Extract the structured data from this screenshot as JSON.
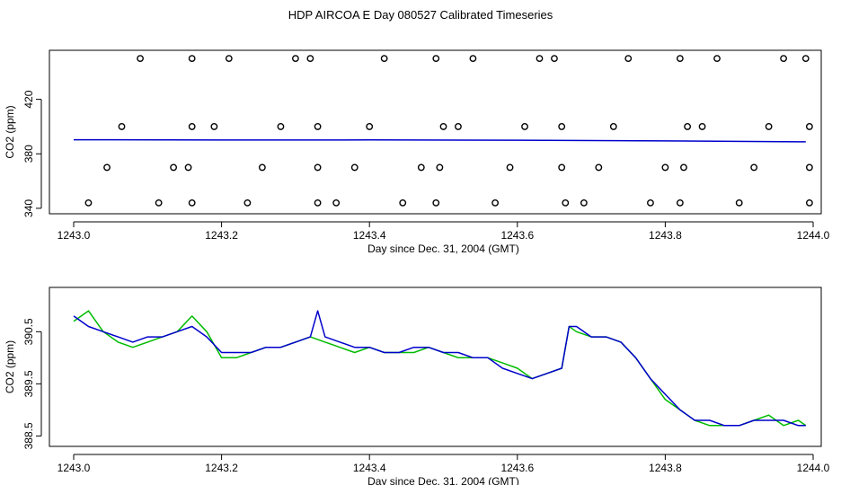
{
  "title": "HDP AIRCOA E  Day 080527  Calibrated Timeseries",
  "chart_data": [
    {
      "type": "scatter",
      "xlabel": "Day since Dec. 31, 2004 (GMT)",
      "ylabel": "CO2 (ppm)",
      "xlim": [
        1243.0,
        1244.0
      ],
      "ylim": [
        336,
        456
      ],
      "x_ticks": [
        "1243.0",
        "1243.2",
        "1243.4",
        "1243.6",
        "1243.8",
        "1244.0"
      ],
      "y_ticks": [
        "340",
        "380",
        "420"
      ],
      "grid": false,
      "series": [
        {
          "marker": "open-circle",
          "color": "#000000",
          "points": [
            [
              1243.09,
              450
            ],
            [
              1243.16,
              450
            ],
            [
              1243.21,
              450
            ],
            [
              1243.3,
              450
            ],
            [
              1243.32,
              450
            ],
            [
              1243.42,
              450
            ],
            [
              1243.49,
              450
            ],
            [
              1243.54,
              450
            ],
            [
              1243.63,
              450
            ],
            [
              1243.65,
              450
            ],
            [
              1243.75,
              450
            ],
            [
              1243.82,
              450
            ],
            [
              1243.87,
              450
            ],
            [
              1243.96,
              450
            ],
            [
              1243.99,
              450
            ],
            [
              1243.065,
              400
            ],
            [
              1243.16,
              400
            ],
            [
              1243.19,
              400
            ],
            [
              1243.28,
              400
            ],
            [
              1243.33,
              400
            ],
            [
              1243.4,
              400
            ],
            [
              1243.5,
              400
            ],
            [
              1243.52,
              400
            ],
            [
              1243.61,
              400
            ],
            [
              1243.66,
              400
            ],
            [
              1243.73,
              400
            ],
            [
              1243.83,
              400
            ],
            [
              1243.85,
              400
            ],
            [
              1243.94,
              400
            ],
            [
              1243.995,
              400
            ],
            [
              1243.045,
              370
            ],
            [
              1243.135,
              370
            ],
            [
              1243.155,
              370
            ],
            [
              1243.255,
              370
            ],
            [
              1243.33,
              370
            ],
            [
              1243.38,
              370
            ],
            [
              1243.47,
              370
            ],
            [
              1243.495,
              370
            ],
            [
              1243.59,
              370
            ],
            [
              1243.66,
              370
            ],
            [
              1243.71,
              370
            ],
            [
              1243.8,
              370
            ],
            [
              1243.825,
              370
            ],
            [
              1243.92,
              370
            ],
            [
              1243.995,
              370
            ],
            [
              1243.02,
              344
            ],
            [
              1243.115,
              344
            ],
            [
              1243.16,
              344
            ],
            [
              1243.235,
              344
            ],
            [
              1243.33,
              344
            ],
            [
              1243.355,
              344
            ],
            [
              1243.445,
              344
            ],
            [
              1243.49,
              344
            ],
            [
              1243.57,
              344
            ],
            [
              1243.665,
              344
            ],
            [
              1243.69,
              344
            ],
            [
              1243.78,
              344
            ],
            [
              1243.82,
              344
            ],
            [
              1243.9,
              344
            ],
            [
              1243.995,
              344
            ]
          ]
        },
        {
          "marker": "line",
          "color": "#0000cc",
          "x": [
            1243.0,
            1243.2,
            1243.4,
            1243.6,
            1243.8,
            1243.99
          ],
          "y": [
            390.3,
            390.1,
            390.2,
            390.0,
            389.5,
            388.8
          ]
        }
      ]
    },
    {
      "type": "line",
      "xlabel": "Day since Dec. 31, 2004 (GMT)",
      "ylabel": "CO2 (ppm)",
      "xlim": [
        1243.0,
        1244.0
      ],
      "ylim": [
        388.3,
        391.35
      ],
      "x_ticks": [
        "1243.0",
        "1243.2",
        "1243.4",
        "1243.6",
        "1243.8",
        "1244.0"
      ],
      "y_ticks": [
        "388.5",
        "389.5",
        "390.5"
      ],
      "grid": false,
      "series": [
        {
          "color": "#00bb00",
          "x": [
            1243.0,
            1243.02,
            1243.04,
            1243.06,
            1243.08,
            1243.1,
            1243.12,
            1243.14,
            1243.16,
            1243.18,
            1243.2,
            1243.22,
            1243.24,
            1243.26,
            1243.28,
            1243.3,
            1243.32,
            1243.34,
            1243.36,
            1243.38,
            1243.4,
            1243.42,
            1243.44,
            1243.46,
            1243.48,
            1243.5,
            1243.52,
            1243.54,
            1243.56,
            1243.58,
            1243.6,
            1243.62,
            1243.64,
            1243.66,
            1243.67,
            1243.68,
            1243.7,
            1243.72,
            1243.74,
            1243.76,
            1243.78,
            1243.8,
            1243.82,
            1243.84,
            1243.86,
            1243.88,
            1243.9,
            1243.92,
            1243.94,
            1243.96,
            1243.98,
            1243.99
          ],
          "y": [
            390.7,
            390.9,
            390.5,
            390.3,
            390.2,
            390.3,
            390.4,
            390.5,
            390.8,
            390.5,
            390.0,
            390.0,
            390.1,
            390.2,
            390.2,
            390.3,
            390.4,
            390.3,
            390.2,
            390.1,
            390.2,
            390.1,
            390.1,
            390.1,
            390.2,
            390.1,
            390.0,
            390.0,
            390.0,
            389.9,
            389.8,
            389.6,
            389.7,
            389.8,
            390.6,
            390.5,
            390.4,
            390.4,
            390.3,
            390.0,
            389.6,
            389.2,
            389.0,
            388.8,
            388.7,
            388.7,
            388.7,
            388.8,
            388.9,
            388.7,
            388.8,
            388.7
          ]
        },
        {
          "color": "#0000cc",
          "x": [
            1243.0,
            1243.02,
            1243.04,
            1243.06,
            1243.08,
            1243.1,
            1243.12,
            1243.14,
            1243.16,
            1243.18,
            1243.2,
            1243.22,
            1243.24,
            1243.26,
            1243.28,
            1243.3,
            1243.32,
            1243.33,
            1243.34,
            1243.36,
            1243.38,
            1243.4,
            1243.42,
            1243.44,
            1243.46,
            1243.48,
            1243.5,
            1243.52,
            1243.54,
            1243.56,
            1243.58,
            1243.6,
            1243.62,
            1243.64,
            1243.66,
            1243.67,
            1243.68,
            1243.7,
            1243.72,
            1243.74,
            1243.76,
            1243.78,
            1243.8,
            1243.82,
            1243.84,
            1243.86,
            1243.88,
            1243.9,
            1243.92,
            1243.94,
            1243.96,
            1243.98,
            1243.99
          ],
          "y": [
            390.8,
            390.6,
            390.5,
            390.4,
            390.3,
            390.4,
            390.4,
            390.5,
            390.6,
            390.4,
            390.1,
            390.1,
            390.1,
            390.2,
            390.2,
            390.3,
            390.4,
            390.9,
            390.4,
            390.3,
            390.2,
            390.2,
            390.1,
            390.1,
            390.2,
            390.2,
            390.1,
            390.1,
            390.0,
            390.0,
            389.8,
            389.7,
            389.6,
            389.7,
            389.8,
            390.6,
            390.6,
            390.4,
            390.4,
            390.3,
            390.0,
            389.6,
            389.3,
            389.0,
            388.8,
            388.8,
            388.7,
            388.7,
            388.8,
            388.8,
            388.8,
            388.7,
            388.7
          ]
        }
      ]
    }
  ]
}
